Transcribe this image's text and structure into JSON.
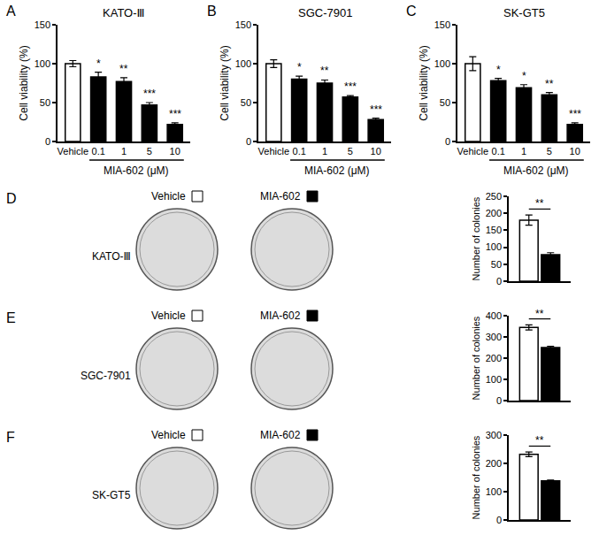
{
  "chart_data": [
    {
      "panel": "A",
      "type": "bar",
      "title": "KATO-Ⅲ",
      "categories": [
        "Vehicle",
        "0.1",
        "1",
        "5",
        "10"
      ],
      "values": [
        100,
        83,
        77,
        47,
        22
      ],
      "errors": [
        4,
        6,
        5,
        3,
        2
      ],
      "significance": [
        null,
        "*",
        "**",
        "***",
        "***"
      ],
      "colors": [
        "#ffffff",
        "#000000",
        "#000000",
        "#000000",
        "#000000"
      ],
      "ylabel": "Cell viability (%)",
      "xlabel": "MIA-602 (μM)",
      "ylim": [
        0,
        150
      ],
      "yticks": [
        0,
        50,
        100,
        150
      ]
    },
    {
      "panel": "B",
      "type": "bar",
      "title": "SGC-7901",
      "categories": [
        "Vehicle",
        "0.1",
        "1",
        "5",
        "10"
      ],
      "values": [
        100,
        80,
        75,
        57,
        28
      ],
      "errors": [
        5,
        4,
        4,
        2,
        2
      ],
      "significance": [
        null,
        "*",
        "**",
        "***",
        "***"
      ],
      "colors": [
        "#ffffff",
        "#000000",
        "#000000",
        "#000000",
        "#000000"
      ],
      "ylabel": "Cell viability (%)",
      "xlabel": "MIA-602 (μM)",
      "ylim": [
        0,
        150
      ],
      "yticks": [
        0,
        50,
        100,
        150
      ]
    },
    {
      "panel": "C",
      "type": "bar",
      "title": "SK-GT5",
      "categories": [
        "Vehicle",
        "0.1",
        "1",
        "5",
        "10"
      ],
      "values": [
        100,
        78,
        69,
        60,
        22
      ],
      "errors": [
        9,
        3,
        4,
        3,
        2
      ],
      "significance": [
        null,
        "*",
        "*",
        "**",
        "***"
      ],
      "colors": [
        "#ffffff",
        "#000000",
        "#000000",
        "#000000",
        "#000000"
      ],
      "ylabel": "Cell viability (%)",
      "xlabel": "MIA-602 (μM)",
      "ylim": [
        0,
        150
      ],
      "yticks": [
        0,
        50,
        100,
        150
      ]
    },
    {
      "panel": "D",
      "type": "bar",
      "title": "KATO-Ⅲ",
      "categories": [
        null
      ],
      "series": [
        {
          "name": "Vehicle",
          "color": "#ffffff",
          "values": [
            180
          ],
          "errors": [
            15
          ]
        },
        {
          "name": "MIA-602",
          "color": "#000000",
          "values": [
            78
          ],
          "errors": [
            6
          ]
        }
      ],
      "significance": "**",
      "ylabel": "Number of colonies",
      "tick_labels": "y",
      "ylim": [
        0,
        250
      ],
      "yticks": [
        0,
        50,
        100,
        150,
        200,
        250
      ]
    },
    {
      "panel": "E",
      "type": "bar",
      "title": "SGC-7901",
      "categories": [
        null
      ],
      "series": [
        {
          "name": "Vehicle",
          "color": "#ffffff",
          "values": [
            345
          ],
          "errors": [
            12
          ]
        },
        {
          "name": "MIA-602",
          "color": "#000000",
          "values": [
            250
          ],
          "errors": [
            6
          ]
        }
      ],
      "significance": "**",
      "ylabel": "Number of colonies",
      "tick_labels": "y",
      "ylim": [
        0,
        400
      ],
      "yticks": [
        0,
        100,
        200,
        300,
        400
      ]
    },
    {
      "panel": "F",
      "type": "bar",
      "title": "SK-GT5",
      "categories": [
        null
      ],
      "series": [
        {
          "name": "Vehicle",
          "color": "#ffffff",
          "values": [
            232
          ],
          "errors": [
            8
          ]
        },
        {
          "name": "MIA-602",
          "color": "#000000",
          "values": [
            138
          ],
          "errors": [
            3
          ]
        }
      ],
      "significance": "**",
      "ylabel": "Number of colonies",
      "tick_labels": "y",
      "ylim": [
        0,
        300
      ],
      "yticks": [
        0,
        100,
        200,
        300
      ]
    }
  ]
}
